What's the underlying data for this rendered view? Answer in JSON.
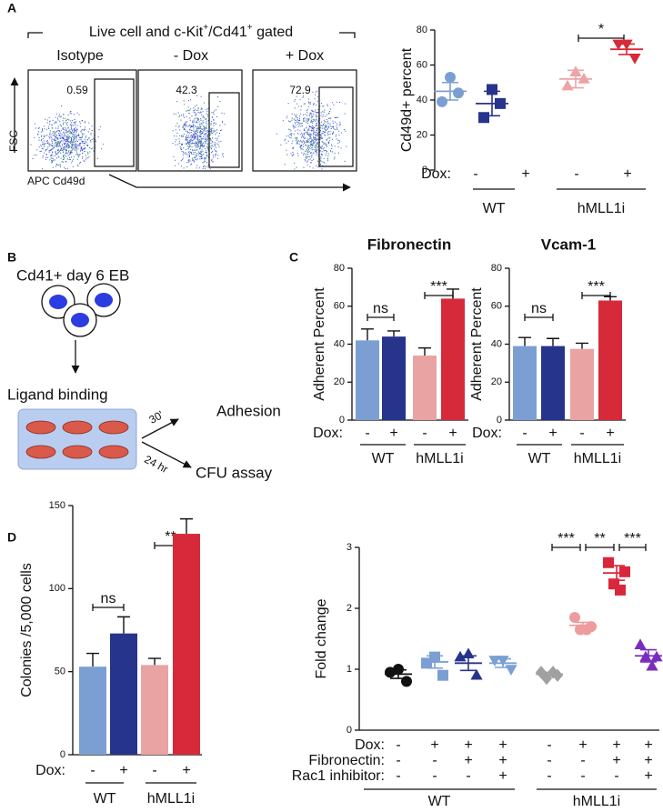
{
  "panel_labels": [
    "A",
    "B",
    "C",
    "D"
  ],
  "flow": {
    "header": [
      "Live cell and c-Kit",
      "+",
      "/Cd41",
      "+",
      " gated"
    ],
    "panels": [
      {
        "title": "Isotype",
        "gate": 0.59
      },
      {
        "title": "- Dox",
        "gate": 42.3
      },
      {
        "title": "+ Dox",
        "gate": 72.9
      }
    ],
    "y_axis": "FSC",
    "x_axis": "APC Cd49d"
  },
  "schematic": {
    "title": "Cd41+ day 6 EB",
    "step": "Ligand binding",
    "short_time": "30'",
    "long_time": "24 hr",
    "outcome_short": "Adhesion",
    "outcome_long": "CFU assay"
  },
  "chart_data": [
    {
      "type": "dot",
      "ylabel": "Cd49d+ percent",
      "ylim": [
        0,
        80
      ],
      "yticks": [
        0,
        20,
        40,
        60,
        80
      ],
      "rows": [
        {
          "label": "Dox:",
          "values": [
            "-",
            "+",
            "-",
            "+"
          ]
        }
      ],
      "groups": [
        "WT",
        "hMLL1i"
      ],
      "annotations": [
        "*"
      ],
      "series": [
        {
          "color": "#7b9fd3",
          "marker": "circle",
          "values": [
            53,
            39,
            44
          ],
          "mean": 45,
          "sem": 5
        },
        {
          "color": "#27348b",
          "marker": "square",
          "values": [
            46,
            30,
            38
          ],
          "mean": 38,
          "sem": 7
        },
        {
          "color": "#eca4a4",
          "marker": "triangle",
          "values": [
            56,
            48,
            52
          ],
          "mean": 52,
          "sem": 5
        },
        {
          "color": "#d62a3b",
          "marker": "inv-triangle",
          "values": [
            72,
            72,
            64
          ],
          "mean": 69,
          "sem": 3
        }
      ]
    },
    {
      "type": "bar",
      "title": "Fibronectin",
      "ylabel": "Adherent Percent",
      "ylim": [
        0,
        80
      ],
      "yticks": [
        0,
        20,
        40,
        60,
        80
      ],
      "values": [
        42,
        44,
        34,
        64
      ],
      "errors": [
        6,
        3,
        4,
        5
      ],
      "colors": [
        "#7b9fd3",
        "#27348b",
        "#e9a3a3",
        "#d62a3b"
      ],
      "rows": [
        {
          "label": "Dox:",
          "values": [
            "-",
            "+",
            "-",
            "+"
          ]
        }
      ],
      "groups": [
        "WT",
        "hMLL1i"
      ],
      "annotations": [
        "ns",
        "***"
      ]
    },
    {
      "type": "bar",
      "title": "Vcam-1",
      "ylabel": "Adherent Percent",
      "ylim": [
        0,
        80
      ],
      "yticks": [
        0,
        20,
        40,
        60,
        80
      ],
      "values": [
        39,
        39,
        37.5,
        63
      ],
      "errors": [
        4.5,
        4,
        3,
        2
      ],
      "colors": [
        "#7b9fd3",
        "#27348b",
        "#e9a3a3",
        "#d62a3b"
      ],
      "rows": [
        {
          "label": "Dox:",
          "values": [
            "-",
            "+",
            "-",
            "+"
          ]
        }
      ],
      "groups": [
        "WT",
        "hMLL1i"
      ],
      "annotations": [
        "ns",
        "***"
      ]
    },
    {
      "type": "bar",
      "ylabel": "Colonies /5,000 cells",
      "ylim": [
        0,
        150
      ],
      "yticks": [
        0,
        50,
        100,
        150
      ],
      "values": [
        53,
        73,
        54,
        133
      ],
      "errors": [
        8,
        10,
        4,
        9
      ],
      "colors": [
        "#7b9fd3",
        "#27348b",
        "#e9a3a3",
        "#d62a3b"
      ],
      "rows": [
        {
          "label": "Dox:",
          "values": [
            "-",
            "+",
            "-",
            "+"
          ]
        }
      ],
      "groups": [
        "WT",
        "hMLL1i"
      ],
      "annotations": [
        "ns",
        "**"
      ]
    },
    {
      "type": "dot",
      "ylabel": "Fold change",
      "ylim": [
        0,
        3
      ],
      "yticks": [
        0,
        1,
        2,
        3
      ],
      "rows": [
        {
          "label": "Dox:",
          "values": [
            "-",
            "+",
            "+",
            "+",
            "-",
            "+",
            "+",
            "+"
          ]
        },
        {
          "label": "Fibronectin:",
          "values": [
            "-",
            "-",
            "+",
            "+",
            "-",
            "-",
            "+",
            "+"
          ]
        },
        {
          "label": "Rac1 inhibitor:",
          "values": [
            "-",
            "-",
            "-",
            "+",
            "-",
            "-",
            "-",
            "+"
          ]
        }
      ],
      "groups": [
        "WT",
        "hMLL1i"
      ],
      "annotations": [
        "***",
        "**",
        "***"
      ],
      "series": [
        {
          "color": "#111111",
          "marker": "circle",
          "values": [
            1.0,
            0.95,
            0.8
          ],
          "mean": 0.92,
          "sem": 0.07
        },
        {
          "color": "#7b9fd3",
          "marker": "square",
          "values": [
            1.2,
            1.1,
            0.9
          ],
          "mean": 1.12,
          "sem": 0.1
        },
        {
          "color": "#27348b",
          "marker": "triangle",
          "values": [
            1.25,
            1.2,
            0.9
          ],
          "mean": 1.1,
          "sem": 0.12
        },
        {
          "color": "#7b9fd3",
          "marker": "inv-triangle",
          "values": [
            1.15,
            1.15,
            1.0
          ],
          "mean": 1.1,
          "sem": 0.07
        },
        {
          "color": "#a0a0a0",
          "marker": "diamond",
          "values": [
            0.95,
            0.9,
            0.85,
            0.95
          ],
          "mean": 0.92,
          "sem": 0.03
        },
        {
          "color": "#ec9c9c",
          "marker": "circle",
          "values": [
            1.85,
            1.7,
            1.65,
            1.65
          ],
          "mean": 1.72,
          "sem": 0.05
        },
        {
          "color": "#d9263a",
          "marker": "square",
          "values": [
            2.75,
            2.6,
            2.4,
            2.3
          ],
          "mean": 2.58,
          "sem": 0.12
        },
        {
          "color": "#7a2cbf",
          "marker": "triangle",
          "values": [
            1.4,
            1.2,
            1.2,
            1.05
          ],
          "mean": 1.22,
          "sem": 0.1
        }
      ]
    }
  ]
}
